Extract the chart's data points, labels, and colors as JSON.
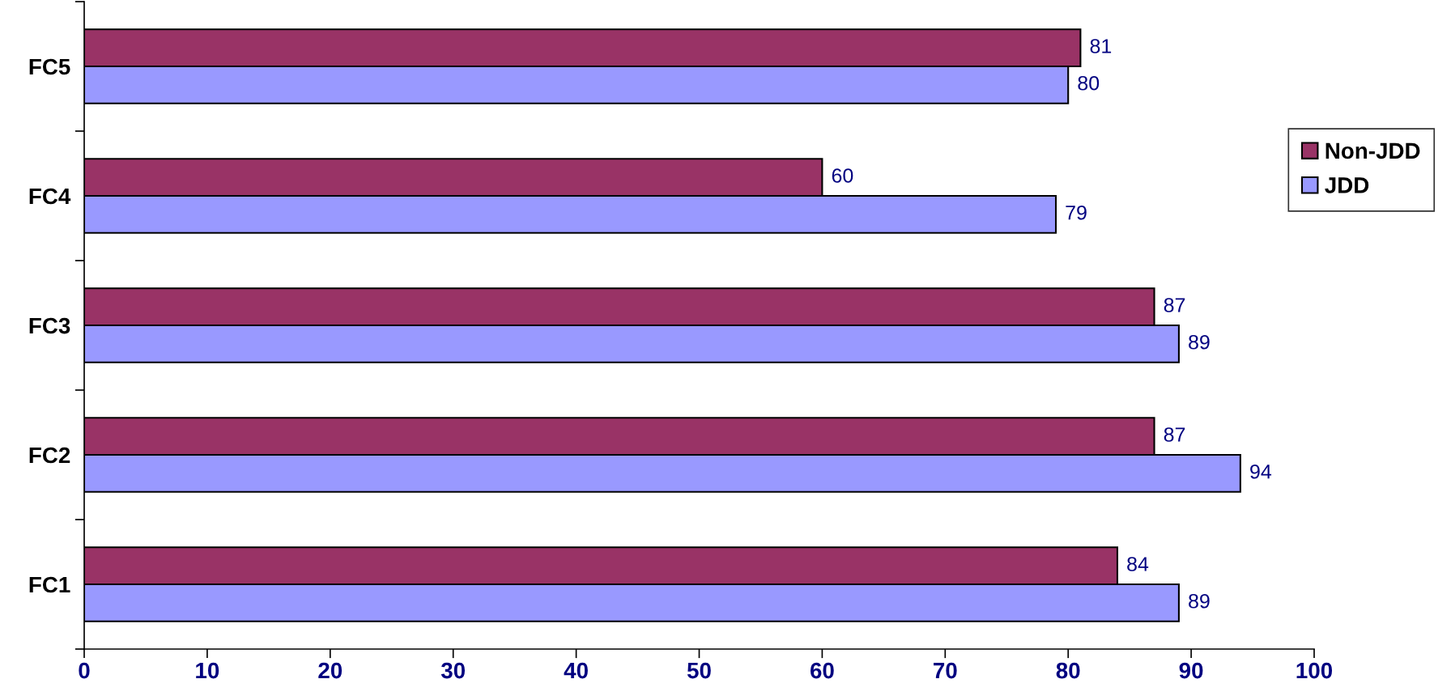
{
  "chart_data": {
    "type": "bar",
    "orientation": "horizontal",
    "categories": [
      "FC5",
      "FC4",
      "FC3",
      "FC2",
      "FC1"
    ],
    "series": [
      {
        "name": "Non-JDD",
        "color": "#993366",
        "values": [
          81,
          60,
          87,
          87,
          84
        ]
      },
      {
        "name": "JDD",
        "color": "#9999ff",
        "values": [
          80,
          79,
          89,
          94,
          89
        ]
      }
    ],
    "xlim": [
      0,
      100
    ],
    "xticks": [
      0,
      10,
      20,
      30,
      40,
      50,
      60,
      70,
      80,
      90,
      100
    ],
    "data_labels": true,
    "grid": false,
    "legend": "right"
  }
}
